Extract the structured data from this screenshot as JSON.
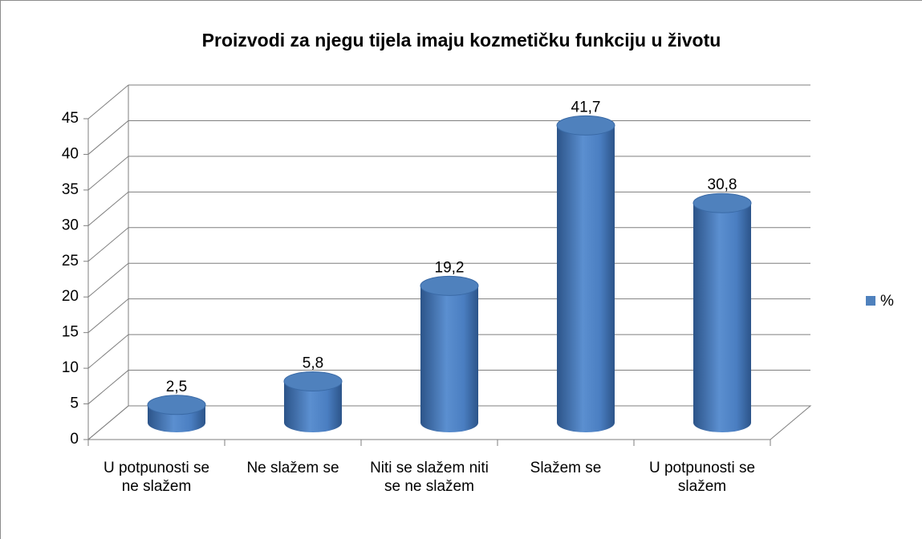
{
  "chart_data": {
    "type": "bar",
    "title": "Proizvodi za njegu tijela imaju kozmetičku funkciju u životu",
    "categories": [
      "U potpunosti se ne slažem",
      "Ne slažem se",
      "Niti se slažem niti se ne slažem",
      "Slažem se",
      "U potpunosti se slažem"
    ],
    "series": [
      {
        "name": "%",
        "color": "#4f81bd",
        "values": [
          2.5,
          5.8,
          19.2,
          41.7,
          30.8
        ],
        "value_labels": [
          "2,5",
          "5,8",
          "19,2",
          "41,7",
          "30,8"
        ]
      }
    ],
    "ylim": [
      0,
      45
    ],
    "yticks": [
      0,
      5,
      10,
      15,
      20,
      25,
      30,
      35,
      40,
      45
    ],
    "grid": true,
    "legend": "right"
  }
}
